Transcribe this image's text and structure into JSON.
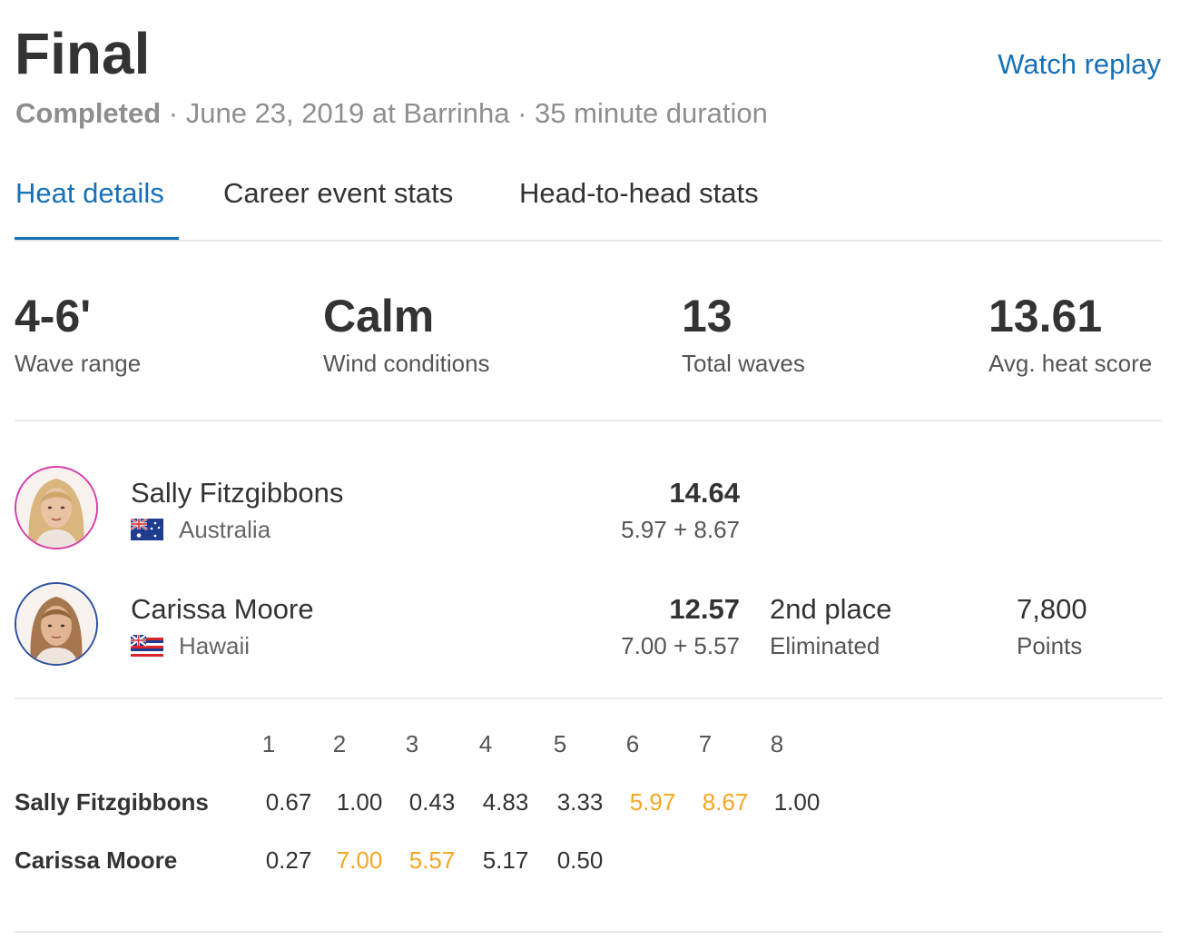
{
  "header": {
    "title": "Final",
    "watch_replay": "Watch replay",
    "status": "Completed",
    "details": " · June 23, 2019 at Barrinha · 35 minute duration"
  },
  "tabs": [
    {
      "label": "Heat details",
      "active": true
    },
    {
      "label": "Career event stats",
      "active": false
    },
    {
      "label": "Head-to-head stats",
      "active": false
    }
  ],
  "stats": [
    {
      "value": "4-6'",
      "label": "Wave range"
    },
    {
      "value": "Calm",
      "label": "Wind conditions"
    },
    {
      "value": "13",
      "label": "Total waves"
    },
    {
      "value": "13.61",
      "label": "Avg. heat score"
    }
  ],
  "surfers": [
    {
      "name": "Sally Fitzgibbons",
      "country": "Australia",
      "flag_icon": "australia-flag-icon",
      "total": "14.64",
      "breakdown": "5.97 + 8.67",
      "ring_color": "#d63bab"
    },
    {
      "name": "Carissa Moore",
      "country": "Hawaii",
      "flag_icon": "hawaii-flag-icon",
      "total": "12.57",
      "breakdown": "7.00 + 5.57",
      "place": "2nd place",
      "place_status": "Eliminated",
      "points": "7,800",
      "points_label": "Points",
      "ring_color": "#2c4f9e"
    }
  ],
  "wave_table": {
    "headers": [
      "1",
      "2",
      "3",
      "4",
      "5",
      "6",
      "7",
      "8"
    ],
    "counting_color": "#f5a623",
    "rows": [
      {
        "name": "Sally Fitzgibbons",
        "scores": [
          "0.67",
          "1.00",
          "0.43",
          "4.83",
          "3.33",
          "5.97",
          "8.67",
          "1.00"
        ],
        "counting": [
          5,
          6
        ]
      },
      {
        "name": "Carissa Moore",
        "scores": [
          "0.27",
          "7.00",
          "5.57",
          "5.17",
          "0.50"
        ],
        "counting": [
          1,
          2
        ]
      }
    ]
  }
}
